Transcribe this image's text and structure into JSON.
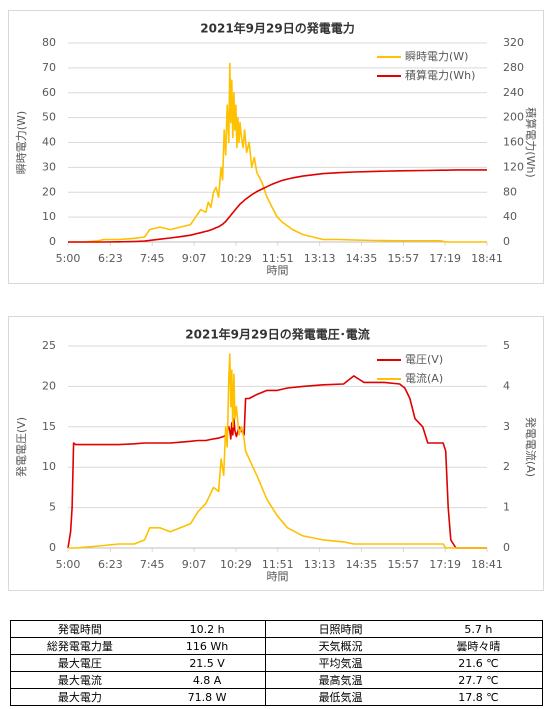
{
  "chart_data": [
    {
      "type": "line",
      "title": "2021年9月29日の発電電力",
      "xlabel": "時間",
      "ylabel": "瞬時電力(W)",
      "y2label": "積算電力(Wh)",
      "x": [
        300,
        330,
        360,
        370,
        400,
        430,
        450,
        460,
        480,
        500,
        520,
        540,
        550,
        560,
        570,
        575,
        580,
        585,
        590,
        595,
        600,
        603,
        606,
        609,
        612,
        615,
        617,
        619,
        621,
        623,
        625,
        627,
        629,
        631,
        633,
        635,
        637,
        640,
        643,
        646,
        650,
        655,
        660,
        665,
        670,
        680,
        690,
        700,
        710,
        720,
        740,
        760,
        780,
        800,
        830,
        860,
        900,
        950,
        1000,
        1030,
        1040,
        1060,
        1121
      ],
      "xlim": [
        300,
        1121
      ],
      "xticks": [
        {
          "value": 300,
          "label": "5:00"
        },
        {
          "value": 383,
          "label": "6:23"
        },
        {
          "value": 465,
          "label": "7:45"
        },
        {
          "value": 547,
          "label": "9:07"
        },
        {
          "value": 629,
          "label": "10:29"
        },
        {
          "value": 711,
          "label": "11:51"
        },
        {
          "value": 793,
          "label": "13:13"
        },
        {
          "value": 875,
          "label": "14:35"
        },
        {
          "value": 957,
          "label": "15:57"
        },
        {
          "value": 1039,
          "label": "17:19"
        },
        {
          "value": 1121,
          "label": "18:41"
        }
      ],
      "ylim": [
        0,
        80
      ],
      "yticks": [
        0,
        10,
        20,
        30,
        40,
        50,
        60,
        70,
        80
      ],
      "y2lim": [
        0,
        320
      ],
      "y2ticks": [
        0,
        40,
        80,
        120,
        160,
        200,
        240,
        280,
        320
      ],
      "grid": true,
      "legend": "upper right",
      "series": [
        {
          "name": "瞬時電力(W)",
          "color": "#ffc000",
          "values": [
            0,
            0,
            0.5,
            1,
            1,
            1.5,
            2,
            5,
            6,
            5,
            6,
            7,
            10,
            13,
            12,
            16,
            14,
            20,
            22,
            18,
            30,
            25,
            45,
            35,
            55,
            40,
            71.8,
            48,
            65,
            42,
            60,
            45,
            55,
            38,
            50,
            40,
            48,
            42,
            38,
            45,
            36,
            40,
            30,
            34,
            28,
            24,
            18,
            14,
            10,
            8,
            5,
            3,
            2,
            1,
            1,
            0.8,
            0.6,
            0.5,
            0.5,
            0.5,
            0,
            0,
            0
          ]
        },
        {
          "name": "積算電力(Wh)",
          "color": "#e00000",
          "axis": "y2",
          "values": [
            0,
            0,
            0,
            0,
            0.3,
            0.8,
            1.5,
            2.5,
            4.5,
            6.5,
            8.5,
            11,
            13,
            15,
            17,
            18,
            19.5,
            21,
            23,
            24.5,
            27,
            28.5,
            31,
            33,
            36,
            39,
            41,
            43,
            45,
            47,
            49,
            51,
            53,
            55,
            57,
            59,
            61,
            63,
            65,
            67.5,
            70,
            73,
            76,
            78.5,
            81,
            85,
            89,
            93,
            96,
            99,
            103,
            106,
            108,
            110,
            111.5,
            112.5,
            113.5,
            114.5,
            115,
            115.5,
            115.5,
            116,
            116
          ]
        }
      ]
    },
    {
      "type": "line",
      "title": "2021年9月29日の発電電圧･電流",
      "xlabel": "時間",
      "ylabel": "発電電圧(V)",
      "y2label": "発電電流(A)",
      "x": [
        300,
        305,
        308,
        311,
        315,
        360,
        400,
        430,
        450,
        460,
        480,
        500,
        520,
        540,
        555,
        570,
        585,
        595,
        600,
        605,
        609,
        612,
        615,
        617,
        619,
        621,
        623,
        625,
        627,
        630,
        635,
        640,
        645,
        648,
        655,
        670,
        690,
        710,
        730,
        760,
        800,
        840,
        860,
        880,
        920,
        950,
        960,
        970,
        980,
        995,
        1005,
        1035,
        1040,
        1045,
        1050,
        1060,
        1121
      ],
      "xlim": [
        300,
        1121
      ],
      "xticks": [
        {
          "value": 300,
          "label": "5:00"
        },
        {
          "value": 383,
          "label": "6:23"
        },
        {
          "value": 465,
          "label": "7:45"
        },
        {
          "value": 547,
          "label": "9:07"
        },
        {
          "value": 629,
          "label": "10:29"
        },
        {
          "value": 711,
          "label": "11:51"
        },
        {
          "value": 793,
          "label": "13:13"
        },
        {
          "value": 875,
          "label": "14:35"
        },
        {
          "value": 957,
          "label": "15:57"
        },
        {
          "value": 1039,
          "label": "17:19"
        },
        {
          "value": 1121,
          "label": "18:41"
        }
      ],
      "ylim": [
        0,
        25
      ],
      "yticks": [
        0,
        5,
        10,
        15,
        20,
        25
      ],
      "y2lim": [
        0,
        5
      ],
      "y2ticks": [
        0,
        1,
        2,
        3,
        4,
        5
      ],
      "grid": true,
      "legend": "upper right",
      "series": [
        {
          "name": "電圧(V)",
          "color": "#e00000",
          "values": [
            0,
            2,
            5,
            13,
            12.8,
            12.8,
            12.8,
            12.9,
            13,
            13,
            13,
            13,
            13.1,
            13.2,
            13.3,
            13.3,
            13.5,
            13.6,
            13.7,
            13.8,
            14,
            14.5,
            15,
            14.5,
            13.5,
            15.5,
            14,
            16,
            14.5,
            13.8,
            15,
            14.5,
            14,
            18.5,
            18.5,
            19,
            19.5,
            19.5,
            19.8,
            20,
            20.2,
            20.3,
            21.3,
            20.5,
            20.5,
            20.3,
            19.8,
            18.5,
            16,
            15,
            13,
            13,
            12,
            5,
            1,
            0,
            0
          ]
        },
        {
          "name": "電流(A)",
          "color": "#ffc000",
          "axis": "y2",
          "values": [
            0,
            0,
            0,
            0,
            0,
            0.05,
            0.1,
            0.1,
            0.2,
            0.5,
            0.5,
            0.4,
            0.5,
            0.6,
            0.9,
            1.1,
            1.5,
            1.4,
            2.2,
            1.8,
            3,
            2.5,
            4.2,
            4.8,
            3.5,
            4.4,
            3,
            4.3,
            3.2,
            3.5,
            2.8,
            3,
            2.7,
            2.4,
            2.2,
            1.8,
            1.2,
            0.8,
            0.5,
            0.3,
            0.2,
            0.15,
            0.1,
            0.1,
            0.1,
            0.1,
            0.1,
            0.1,
            0.1,
            0.1,
            0.1,
            0.1,
            0,
            0,
            0,
            0,
            0
          ]
        }
      ]
    }
  ],
  "table": {
    "rows": [
      [
        "発電時間",
        "10.2 h",
        "日照時間",
        "5.7 h"
      ],
      [
        "総発電電力量",
        "116 Wh",
        "天気概況",
        "曇時々晴"
      ],
      [
        "最大電圧",
        "21.5 V",
        "平均気温",
        "21.6 ℃"
      ],
      [
        "最大電流",
        "4.8 A",
        "最高気温",
        "27.7 ℃"
      ],
      [
        "最大電力",
        "71.8 W",
        "最低気温",
        "17.8 ℃"
      ]
    ]
  }
}
